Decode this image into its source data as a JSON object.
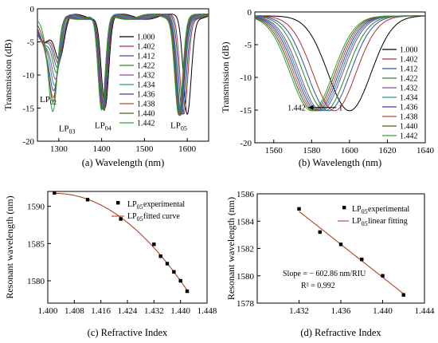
{
  "chart_data": [
    {
      "panel": "a",
      "type": "line",
      "caption": "(a) Wavelength (nm)",
      "xlabel": "(a) Wavelength (nm)",
      "ylabel": "Transmission (dB)",
      "xlim": [
        1250,
        1650
      ],
      "ylim": [
        -20,
        0
      ],
      "xticks": [
        "1300",
        "1400",
        "1500",
        "1600"
      ],
      "yticks": [
        "0",
        "-5",
        "-10",
        "-15",
        "-20"
      ],
      "legend": [
        "1.000",
        "1.402",
        "1.412",
        "1.422",
        "1.432",
        "1.434",
        "1.436",
        "1.438",
        "1.440",
        "1.442"
      ],
      "legend_position": "center-right",
      "annotations": [
        {
          "text": "LP",
          "sub": "02",
          "x": 1278,
          "y": -13.6
        },
        {
          "text": "LP",
          "sub": "03",
          "x": 1322,
          "y": -18.0
        },
        {
          "text": "LP",
          "sub": "04",
          "x": 1406,
          "y": -17.5
        },
        {
          "text": "LP",
          "sub": "05",
          "x": 1583,
          "y": -17.5
        }
      ],
      "series": [
        {
          "name": "1.000",
          "color": "#000000",
          "dips": [
            [
              1265,
              -3.5,
              25
            ],
            [
              1302,
              -6,
              15
            ],
            [
              1408,
              -13.5,
              12
            ],
            [
              1600,
              -14.5,
              13
            ]
          ]
        },
        {
          "name": "1.402",
          "color": "#b03030",
          "dips": [
            [
              1265,
              -3.5,
              25
            ],
            [
              1300,
              -6.5,
              15
            ],
            [
              1406,
              -14,
              12
            ],
            [
              1592,
              -14.5,
              13
            ]
          ]
        },
        {
          "name": "1.412",
          "color": "#3050b0",
          "dips": [
            [
              1265,
              -3.5,
              25
            ],
            [
              1298,
              -7,
              15
            ],
            [
              1405,
              -14,
              12
            ],
            [
              1589,
              -14.5,
              13
            ]
          ]
        },
        {
          "name": "1.422",
          "color": "#2a8a2a",
          "dips": [
            [
              1268,
              -3.8,
              24
            ],
            [
              1296,
              -7.5,
              14
            ],
            [
              1404,
              -14,
              12
            ],
            [
              1586,
              -14.5,
              13
            ]
          ]
        },
        {
          "name": "1.432",
          "color": "#8a4aa0",
          "dips": [
            [
              1270,
              -4,
              24
            ],
            [
              1294,
              -8,
              14
            ],
            [
              1403,
              -14,
              12
            ],
            [
              1585,
              -14.5,
              13
            ]
          ]
        },
        {
          "name": "1.434",
          "color": "#2a9090",
          "dips": [
            [
              1272,
              -4,
              24
            ],
            [
              1292,
              -8.5,
              14
            ],
            [
              1402,
              -14,
              12
            ],
            [
              1584,
              -14.5,
              13
            ]
          ]
        },
        {
          "name": "1.436",
          "color": "#3a3ad0",
          "dips": [
            [
              1272,
              -4.5,
              22
            ],
            [
              1290,
              -9,
              14
            ],
            [
              1402,
              -14.2,
              12
            ],
            [
              1583,
              -14.5,
              13
            ]
          ]
        },
        {
          "name": "1.438",
          "color": "#b05030",
          "dips": [
            [
              1275,
              -5,
              22
            ],
            [
              1289,
              -9,
              14
            ],
            [
              1401,
              -14.3,
              12
            ],
            [
              1582,
              -14.5,
              13
            ]
          ]
        },
        {
          "name": "1.440",
          "color": "#5a5a2a",
          "dips": [
            [
              1278,
              -5,
              22
            ],
            [
              1288,
              -9,
              13
            ],
            [
              1400,
              -14.4,
              12
            ],
            [
              1581,
              -14.5,
              13
            ]
          ]
        },
        {
          "name": "1.442",
          "color": "#30a030",
          "dips": [
            [
              1282,
              -6,
              20
            ],
            [
              1287,
              -9,
              13
            ],
            [
              1400,
              -14.5,
              12
            ],
            [
              1580,
              -14.5,
              13
            ]
          ]
        }
      ]
    },
    {
      "panel": "b",
      "type": "line",
      "caption": "(b) Wavelength (nm)",
      "xlabel": "(b) Wavelength (nm)",
      "ylabel": "Transmission (dB)",
      "xlim": [
        1550,
        1640
      ],
      "ylim": [
        -20,
        0
      ],
      "xticks": [
        "1560",
        "1580",
        "1600",
        "1620",
        "1640"
      ],
      "yticks": [
        "0",
        "-5",
        "-10",
        "-15",
        "-20"
      ],
      "legend": [
        "1.000",
        "1.402",
        "1.412",
        "1.422",
        "1.432",
        "1.434",
        "1.436",
        "1.438",
        "1.440",
        "1.442"
      ],
      "legend_position": "right",
      "annotations": [
        {
          "text": "1.442",
          "x": 1578,
          "y": -14.6
        },
        {
          "text": "1",
          "x": 1593,
          "y": -14.6
        }
      ],
      "series": [
        {
          "name": "1.000",
          "color": "#000000",
          "center": 1600,
          "depth": -14.5
        },
        {
          "name": "1.402",
          "color": "#b03030",
          "center": 1592,
          "depth": -14.5
        },
        {
          "name": "1.412",
          "color": "#3050b0",
          "center": 1589,
          "depth": -14.5
        },
        {
          "name": "1.422",
          "color": "#2a8a2a",
          "center": 1587,
          "depth": -14.5
        },
        {
          "name": "1.432",
          "color": "#8a4aa0",
          "center": 1585,
          "depth": -14.5
        },
        {
          "name": "1.434",
          "color": "#2a9090",
          "center": 1584,
          "depth": -14.5
        },
        {
          "name": "1.436",
          "color": "#3a3ad0",
          "center": 1583,
          "depth": -14.5
        },
        {
          "name": "1.438",
          "color": "#b05030",
          "center": 1582,
          "depth": -14.5
        },
        {
          "name": "1.440",
          "color": "#5a5a2a",
          "center": 1581,
          "depth": -14.5
        },
        {
          "name": "1.442",
          "color": "#30a030",
          "center": 1580,
          "depth": -14.5
        }
      ]
    },
    {
      "panel": "c",
      "type": "scatter",
      "caption": "(c) Refractive Index",
      "xlabel": "(c) Refractive Index",
      "ylabel": "Resonant wavelength (nm)",
      "xlim": [
        1.4,
        1.448
      ],
      "ylim": [
        1577,
        1592
      ],
      "xticks": [
        "1.400",
        "1.408",
        "1.416",
        "1.424",
        "1.432",
        "1.440",
        "1.448"
      ],
      "yticks": [
        "1580",
        "1585",
        "1590"
      ],
      "legend": [
        "LP05 experimental",
        "LP05 fitted curve"
      ],
      "legend_position": "top-right",
      "x": [
        1.402,
        1.412,
        1.422,
        1.432,
        1.434,
        1.436,
        1.438,
        1.44,
        1.442
      ],
      "y": [
        1591.8,
        1590.9,
        1588.3,
        1584.9,
        1583.3,
        1582.3,
        1581.2,
        1580.0,
        1578.6
      ],
      "fit_color": "#b04020"
    },
    {
      "panel": "d",
      "type": "scatter",
      "caption": "(d) Refractive Index",
      "xlabel": "(d) Refractive Index",
      "ylabel": "Resonant wavelength (nm)",
      "xlim": [
        1.428,
        1.444
      ],
      "ylim": [
        1578,
        1586
      ],
      "xticks": [
        "1.432",
        "1.436",
        "1.440",
        "1.444"
      ],
      "yticks": [
        "1578",
        "1580",
        "1582",
        "1584",
        "1586"
      ],
      "legend": [
        "LP05 experimental",
        "LP05 linear fitting"
      ],
      "legend_position": "top-right",
      "x": [
        1.432,
        1.434,
        1.436,
        1.438,
        1.44,
        1.442
      ],
      "y": [
        1584.9,
        1583.2,
        1582.3,
        1581.2,
        1580.0,
        1578.6
      ],
      "slope_text": "Slope = − 602.86 nm/RIU",
      "r2_text": "R² = 0.992",
      "fit_color": "#b04020"
    }
  ]
}
